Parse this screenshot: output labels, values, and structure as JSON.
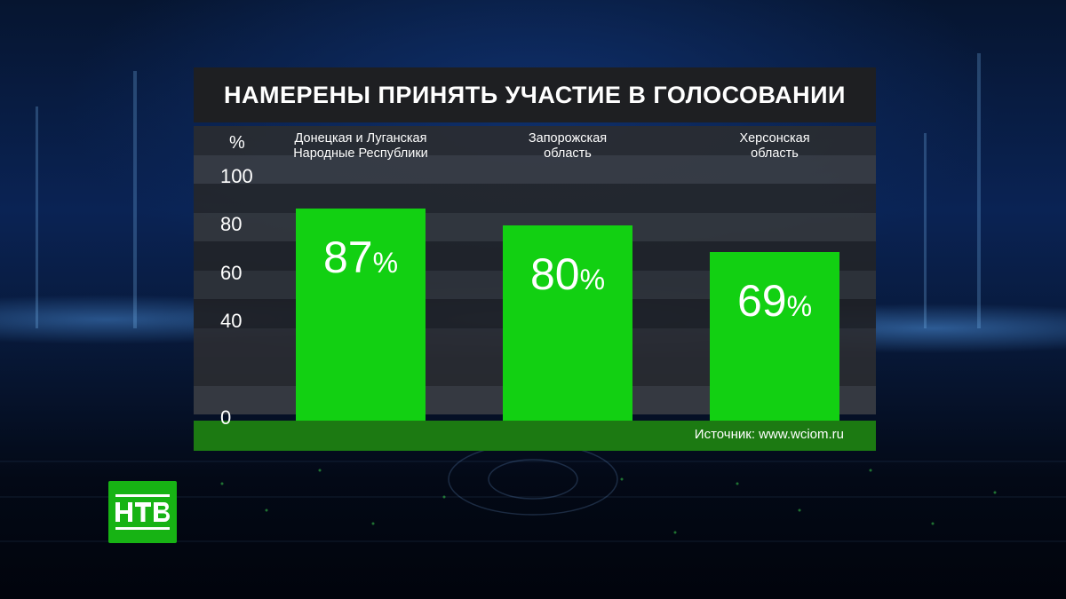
{
  "header": {
    "title": "НАМЕРЕНЫ ПРИНЯТЬ УЧАСТИЕ В ГОЛОСОВАНИИ"
  },
  "chart_data": {
    "type": "bar",
    "title": "НАМЕРЕНЫ ПРИНЯТЬ УЧАСТИЕ В ГОЛОСОВАНИИ",
    "ylabel": "%",
    "xlabel": "",
    "ylim": [
      0,
      100
    ],
    "yticks": [
      "100",
      "80",
      "60",
      "40",
      "0"
    ],
    "categories": [
      "Донецкая и Луганская\nНародные Республики",
      "Запорожская\nобласть",
      "Херсонская\nобласть"
    ],
    "values": [
      87,
      80,
      69
    ],
    "value_labels": [
      "87",
      "80",
      "69"
    ],
    "value_suffix": "%",
    "bar_color": "#12d012",
    "grid": true,
    "legend": "none"
  },
  "footer": {
    "source": "Источник: www.wciom.ru"
  },
  "colors": {
    "panel": "#1e1f22",
    "accent": "#12d012",
    "footer": "#1c7a12"
  },
  "logo": {
    "text": "НТВ",
    "icon": "ntv-logo-icon"
  }
}
